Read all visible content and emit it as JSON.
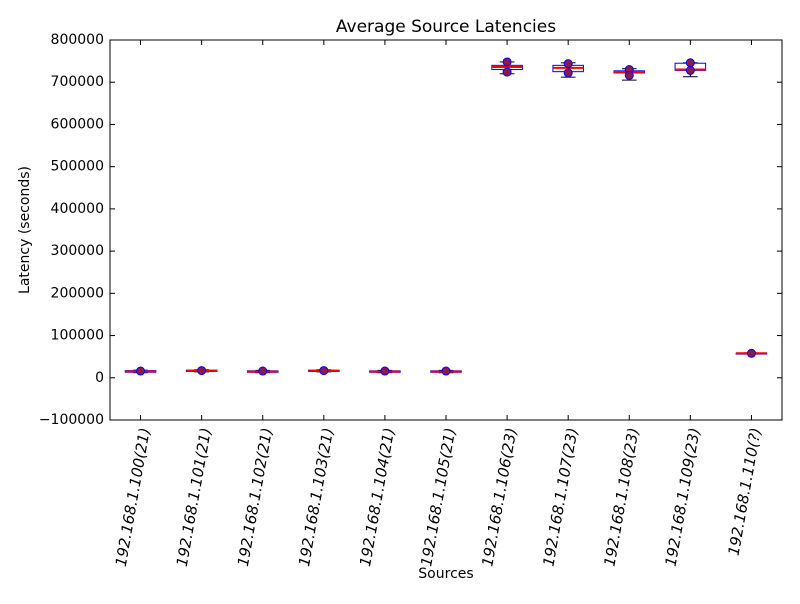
{
  "chart_data": {
    "type": "box",
    "title": "Average Source Latencies",
    "x_label": "Sources",
    "y_label": "Latency (seconds)",
    "categories": [
      "192.168.1.100(21)",
      "192.168.1.101(21)",
      "192.168.1.102(21)",
      "192.168.1.103(21)",
      "192.168.1.104(21)",
      "192.168.1.105(21)",
      "192.168.1.106(23)",
      "192.168.1.107(23)",
      "192.168.1.108(23)",
      "192.168.1.109(23)",
      "192.168.1.110(?)"
    ],
    "boxes": [
      {
        "whislo": 12000,
        "q1": 13000,
        "med": 15000,
        "q3": 17000,
        "whishi": 18000,
        "points": [
          16000
        ]
      },
      {
        "whislo": 14000,
        "q1": 15000,
        "med": 16500,
        "q3": 18000,
        "whishi": 19000,
        "points": [
          17000
        ]
      },
      {
        "whislo": 12000,
        "q1": 13000,
        "med": 14500,
        "q3": 16500,
        "whishi": 17500,
        "points": [
          16000
        ]
      },
      {
        "whislo": 14000,
        "q1": 15000,
        "med": 16500,
        "q3": 18000,
        "whishi": 19000,
        "points": [
          17000
        ]
      },
      {
        "whislo": 12000,
        "q1": 13000,
        "med": 14500,
        "q3": 16500,
        "whishi": 17500,
        "points": [
          16000
        ]
      },
      {
        "whislo": 12000,
        "q1": 13000,
        "med": 14500,
        "q3": 16500,
        "whishi": 17500,
        "points": [
          16000
        ]
      },
      {
        "whislo": 720000,
        "q1": 730000,
        "med": 736000,
        "q3": 740000,
        "whishi": 748000,
        "points": [
          748000,
          724000
        ]
      },
      {
        "whislo": 712000,
        "q1": 725000,
        "med": 734000,
        "q3": 740000,
        "whishi": 746000,
        "points": [
          744000,
          722000
        ]
      },
      {
        "whislo": 705000,
        "q1": 722000,
        "med": 724000,
        "q3": 727000,
        "whishi": 732000,
        "points": [
          730000,
          716000
        ]
      },
      {
        "whislo": 713000,
        "q1": 728000,
        "med": 730000,
        "q3": 745000,
        "whishi": 746000,
        "points": [
          746000,
          728000
        ]
      },
      {
        "whislo": 57000,
        "q1": 57500,
        "med": 58000,
        "q3": 58500,
        "whishi": 59000,
        "points": [
          58000
        ]
      }
    ],
    "box_color": "#0000ff",
    "median_color": "#ff0000",
    "whisker_color": "#000000",
    "point_color": "#8b1a4a",
    "ylim": [
      -100000,
      800000
    ],
    "yticks": [
      {
        "value": -100000,
        "label": "−100000"
      },
      0,
      100000,
      200000,
      300000,
      400000,
      500000,
      600000,
      700000,
      800000
    ],
    "grid": false
  }
}
